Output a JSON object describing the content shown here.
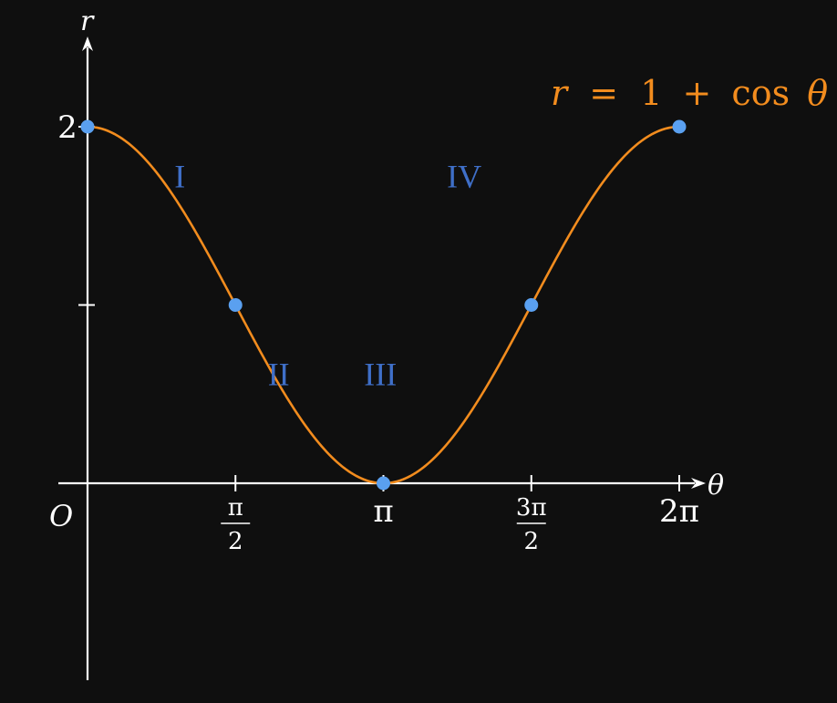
{
  "chart_data": {
    "type": "line",
    "title": "",
    "xlabel": "θ",
    "ylabel": "r",
    "origin_label": "O",
    "equation": {
      "lhs": "r",
      "equals": "=",
      "one": "1",
      "plus": "+",
      "func": "cos",
      "var": "θ"
    },
    "xlim": [
      0,
      6.2832
    ],
    "ylim": [
      0,
      2
    ],
    "x_ticks": [
      {
        "value": 1.5708,
        "label": "",
        "num": "π",
        "den": "2"
      },
      {
        "value": 3.1416,
        "label": "π",
        "num": "",
        "den": ""
      },
      {
        "value": 4.7124,
        "label": "",
        "num": "3π",
        "den": "2"
      },
      {
        "value": 6.2832,
        "label": "2π",
        "num": "",
        "den": ""
      }
    ],
    "y_ticks": [
      {
        "value": 1,
        "label": ""
      },
      {
        "value": 2,
        "label": "2"
      }
    ],
    "series": [
      {
        "formula": "r = 1 + cos(θ)",
        "color": "#f28c1e",
        "domain": [
          0,
          6.2832
        ]
      }
    ],
    "highlight_points": [
      {
        "x": 0,
        "y": 2
      },
      {
        "x": 1.5708,
        "y": 1
      },
      {
        "x": 3.1416,
        "y": 0
      },
      {
        "x": 4.7124,
        "y": 1
      },
      {
        "x": 6.2832,
        "y": 2
      }
    ],
    "point_color": "#5aa0f0",
    "region_labels": [
      {
        "label": "I",
        "x": 0.98,
        "y": 1.66
      },
      {
        "label": "II",
        "x": 2.03,
        "y": 0.55
      },
      {
        "label": "III",
        "x": 3.11,
        "y": 0.55
      },
      {
        "label": "IV",
        "x": 4.0,
        "y": 1.66
      }
    ],
    "region_label_color": "#3f6fc8",
    "grid": false,
    "legend": "none"
  }
}
